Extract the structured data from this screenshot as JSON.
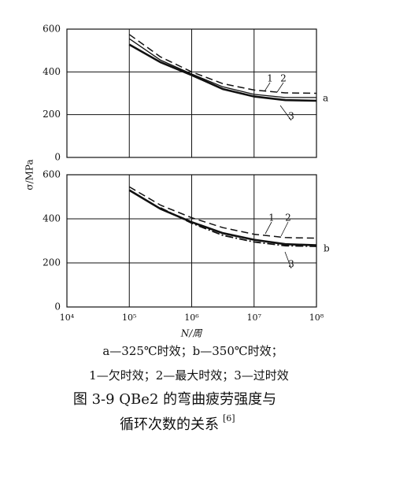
{
  "chart_data": [
    {
      "type": "line",
      "label": "a",
      "x": [
        100000,
        316228,
        1000000,
        3162278,
        10000000,
        31622777,
        100000000
      ],
      "xlim": [
        10000,
        100000000
      ],
      "xticks": [
        100000,
        1000000,
        10000000
      ],
      "ylim": [
        0,
        600
      ],
      "yticks": [
        0,
        200,
        400,
        600
      ],
      "grid": true,
      "log_x": true,
      "series": [
        {
          "name": "1",
          "color": "#111111",
          "dash": "solid",
          "values": [
            555,
            455,
            390,
            330,
            295,
            280,
            280
          ]
        },
        {
          "name": "2",
          "color": "#111111",
          "dash": "dashed",
          "values": [
            575,
            470,
            400,
            345,
            315,
            302,
            300
          ]
        },
        {
          "name": "3",
          "color": "#111111",
          "dash": "thick",
          "values": [
            528,
            445,
            385,
            320,
            285,
            268,
            265
          ]
        }
      ]
    },
    {
      "type": "line",
      "label": "b",
      "x": [
        100000,
        316228,
        1000000,
        3162278,
        10000000,
        31622777,
        100000000
      ],
      "xlim": [
        10000,
        100000000
      ],
      "xticks": [
        {
          "value": 10000,
          "label": "10⁴"
        },
        {
          "value": 100000,
          "label": "10⁵"
        },
        {
          "value": 1000000,
          "label": "10⁶"
        },
        {
          "value": 10000000,
          "label": "10⁷"
        },
        {
          "value": 100000000,
          "label": "10⁸"
        }
      ],
      "ylim": [
        0,
        600
      ],
      "yticks": [
        0,
        200,
        400,
        600
      ],
      "grid": true,
      "log_x": true,
      "series": [
        {
          "name": "1",
          "color": "#111111",
          "dash": "thick",
          "values": [
            530,
            445,
            385,
            335,
            305,
            285,
            280
          ]
        },
        {
          "name": "2",
          "color": "#111111",
          "dash": "dashed",
          "values": [
            545,
            462,
            405,
            360,
            330,
            315,
            312
          ]
        },
        {
          "name": "3",
          "color": "#111111",
          "dash": "dashdot",
          "values": [
            null,
            450,
            380,
            325,
            295,
            278,
            275
          ]
        }
      ]
    }
  ],
  "axis_labels": {
    "y": "σ/MPa",
    "x": "N/周"
  },
  "notes": [
    "a—325℃时效；b—350℃时效；",
    "1—欠时效；2—最大时效；3—过时效"
  ],
  "figure_caption": [
    "图 3-9   QBe2 的弯曲疲劳强度与",
    "循环次数的关系"
  ],
  "reference": "[6]"
}
